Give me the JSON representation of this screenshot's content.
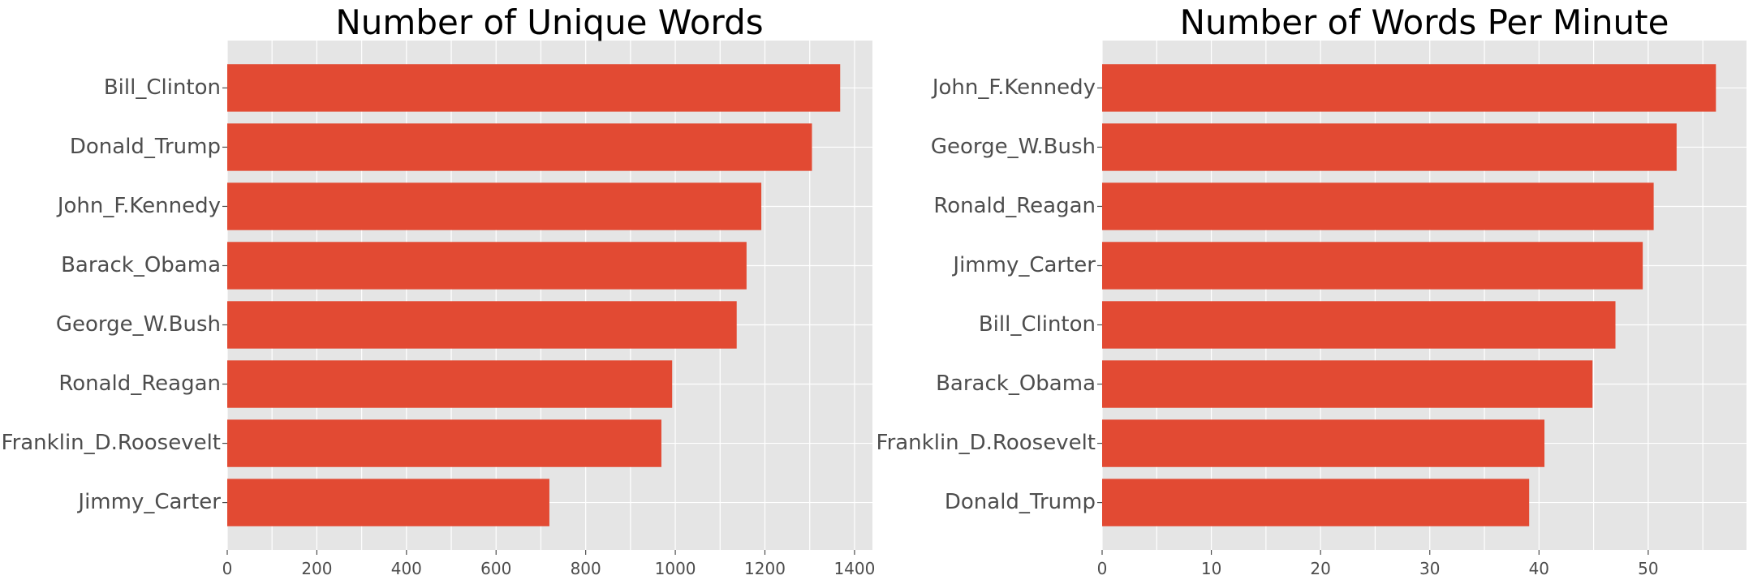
{
  "chart_data": [
    {
      "type": "bar",
      "orientation": "horizontal",
      "title": "Number of Unique Words",
      "xlabel": "",
      "ylabel": "",
      "categories": [
        "Bill_Clinton",
        "Donald_Trump",
        "John_F.Kennedy",
        "Barack_Obama",
        "George_W.Bush",
        "Ronald_Reagan",
        "Franklin_D.Roosevelt",
        "Jimmy_Carter"
      ],
      "values": [
        1368,
        1305,
        1192,
        1159,
        1137,
        993,
        969,
        719
      ],
      "xlim": [
        0,
        1440
      ],
      "xticks": [
        0,
        200,
        400,
        600,
        800,
        1000,
        1200,
        1400
      ],
      "bar_color": "#e24a33",
      "background": "#e5e5e5",
      "grid": true
    },
    {
      "type": "bar",
      "orientation": "horizontal",
      "title": "Number of Words Per Minute",
      "xlabel": "",
      "ylabel": "",
      "categories": [
        "John_F.Kennedy",
        "George_W.Bush",
        "Ronald_Reagan",
        "Jimmy_Carter",
        "Bill_Clinton",
        "Barack_Obama",
        "Franklin_D.Roosevelt",
        "Donald_Trump"
      ],
      "values": [
        56.2,
        52.6,
        50.5,
        49.5,
        47.0,
        44.9,
        40.5,
        39.1
      ],
      "xlim": [
        0,
        59
      ],
      "xticks": [
        0,
        10,
        20,
        30,
        40,
        50
      ],
      "bar_color": "#e24a33",
      "background": "#e5e5e5",
      "grid": true
    }
  ]
}
